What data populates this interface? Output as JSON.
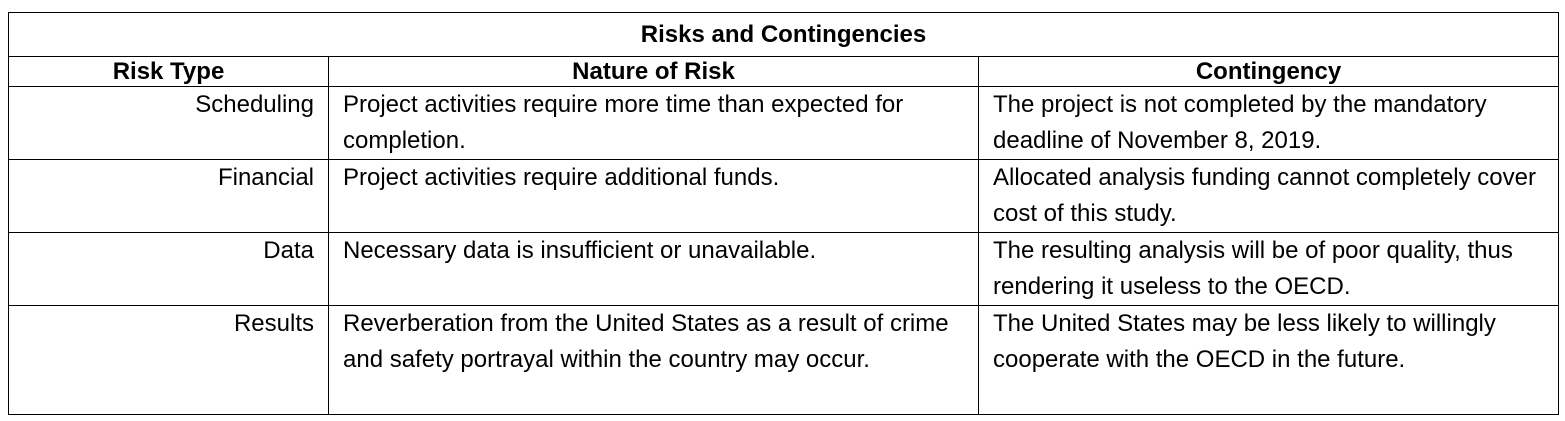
{
  "table": {
    "title": "Risks and Contingencies",
    "headers": [
      "Risk Type",
      "Nature of Risk",
      "Contingency"
    ],
    "rows": [
      {
        "risk_type": "Scheduling",
        "nature": "Project activities require more time than expected for completion.",
        "contingency": "The project is not completed by the mandatory deadline of November 8, 2019."
      },
      {
        "risk_type": "Financial",
        "nature": "Project activities require additional funds.",
        "contingency": "Allocated analysis funding cannot completely cover cost of this study."
      },
      {
        "risk_type": "Data",
        "nature": "Necessary data is insufficient or unavailable.",
        "contingency": "The resulting analysis will be of poor quality, thus rendering it useless to the OECD."
      },
      {
        "risk_type": "Results",
        "nature": "Reverberation from the United States as a result of crime and safety portrayal within the country may occur.",
        "contingency": "The United States may be less likely to willingly cooperate with the OECD in the future."
      }
    ]
  }
}
